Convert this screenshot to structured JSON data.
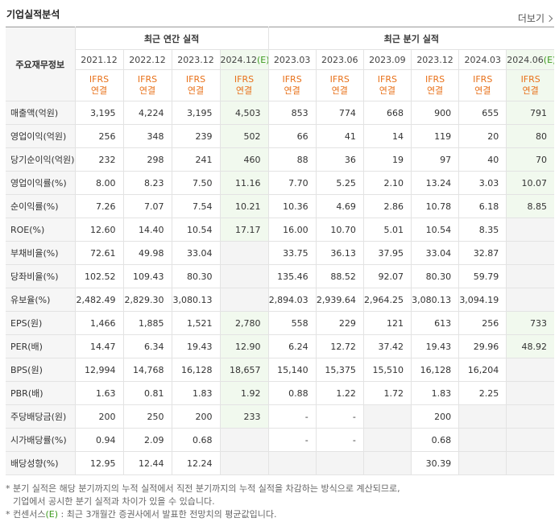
{
  "header": {
    "title": "기업실적분석",
    "more": "더보기"
  },
  "table": {
    "corner": "주요재무정보",
    "groups": [
      {
        "label": "최근 연간 실적",
        "span": 4
      },
      {
        "label": "최근 분기 실적",
        "span": 6
      }
    ],
    "periods": [
      {
        "period": "2021.12",
        "accounting": "IFRS",
        "basis": "연결"
      },
      {
        "period": "2022.12",
        "accounting": "IFRS",
        "basis": "연결"
      },
      {
        "period": "2023.12",
        "accounting": "IFRS",
        "basis": "연결"
      },
      {
        "period": "2024.12",
        "mark": "(E)",
        "accounting": "IFRS",
        "basis": "연결"
      },
      {
        "period": "2023.03",
        "accounting": "IFRS",
        "basis": "연결"
      },
      {
        "period": "2023.06",
        "accounting": "IFRS",
        "basis": "연결"
      },
      {
        "period": "2023.09",
        "accounting": "IFRS",
        "basis": "연결"
      },
      {
        "period": "2023.12",
        "accounting": "IFRS",
        "basis": "연결"
      },
      {
        "period": "2024.03",
        "accounting": "IFRS",
        "basis": "연결"
      },
      {
        "period": "2024.06",
        "mark": "(E)",
        "accounting": "IFRS",
        "basis": "연결"
      }
    ],
    "rows": [
      {
        "label": "매출액(억원)",
        "values": [
          "3,195",
          "4,224",
          "3,195",
          "4,503",
          "853",
          "774",
          "668",
          "900",
          "655",
          "791"
        ]
      },
      {
        "label": "영업이익(억원)",
        "values": [
          "256",
          "348",
          "239",
          "502",
          "66",
          "41",
          "14",
          "119",
          "20",
          "80"
        ]
      },
      {
        "label": "당기순이익(억원)",
        "values": [
          "232",
          "298",
          "241",
          "460",
          "88",
          "36",
          "19",
          "97",
          "40",
          "70"
        ]
      },
      {
        "label": "영업이익률(%)",
        "values": [
          "8.00",
          "8.23",
          "7.50",
          "11.16",
          "7.70",
          "5.25",
          "2.10",
          "13.24",
          "3.03",
          "10.07"
        ]
      },
      {
        "label": "순이익률(%)",
        "values": [
          "7.26",
          "7.07",
          "7.54",
          "10.21",
          "10.36",
          "4.69",
          "2.86",
          "10.78",
          "6.18",
          "8.85"
        ]
      },
      {
        "label": "ROE(%)",
        "values": [
          "12.60",
          "14.40",
          "10.54",
          "17.17",
          "16.00",
          "10.70",
          "5.01",
          "10.54",
          "8.35",
          null
        ]
      },
      {
        "label": "부채비율(%)",
        "values": [
          "72.61",
          "49.98",
          "33.04",
          null,
          "33.75",
          "36.13",
          "37.95",
          "33.04",
          "32.87",
          null
        ]
      },
      {
        "label": "당좌비율(%)",
        "values": [
          "102.52",
          "109.43",
          "80.30",
          null,
          "135.46",
          "88.52",
          "92.07",
          "80.30",
          "59.79",
          null
        ]
      },
      {
        "label": "유보율(%)",
        "values": [
          "2,482.49",
          "2,829.30",
          "3,080.13",
          null,
          "2,894.03",
          "2,939.64",
          "2,964.25",
          "3,080.13",
          "3,094.19",
          null
        ]
      },
      {
        "label": "EPS(원)",
        "values": [
          "1,466",
          "1,885",
          "1,521",
          "2,780",
          "558",
          "229",
          "121",
          "613",
          "256",
          "733"
        ]
      },
      {
        "label": "PER(배)",
        "values": [
          "14.47",
          "6.34",
          "19.43",
          "12.90",
          "6.24",
          "12.72",
          "37.42",
          "19.43",
          "29.96",
          "48.92"
        ]
      },
      {
        "label": "BPS(원)",
        "values": [
          "12,994",
          "14,768",
          "16,128",
          "18,657",
          "15,140",
          "15,375",
          "15,510",
          "16,128",
          "16,204",
          null
        ]
      },
      {
        "label": "PBR(배)",
        "values": [
          "1.63",
          "0.81",
          "1.83",
          "1.92",
          "0.88",
          "1.22",
          "1.72",
          "1.83",
          "2.25",
          null
        ]
      },
      {
        "label": "주당배당금(원)",
        "values": [
          "200",
          "250",
          "200",
          "233",
          "-",
          "-",
          null,
          "200",
          null,
          null
        ]
      },
      {
        "label": "시가배당률(%)",
        "values": [
          "0.94",
          "2.09",
          "0.68",
          null,
          "-",
          "-",
          null,
          "0.68",
          null,
          null
        ]
      },
      {
        "label": "배당성향(%)",
        "values": [
          "12.95",
          "12.44",
          "12.24",
          null,
          null,
          null,
          null,
          "30.39",
          null,
          null
        ]
      }
    ]
  },
  "notes": [
    {
      "lines": [
        "* 분기 실적은 해당 분기까지의 누적 실적에서 직전 분기까지의 누적 실적을 차감하는 방식으로 계산되므로,",
        "기업에서 공시한 분기 실적과 차이가 있을 수 있습니다."
      ]
    },
    {
      "lines": [
        "* 컨센서스",
        "(E)",
        " : 최근 3개월간 증권사에서 발표한 전망치의 평균값입니다."
      ]
    }
  ]
}
